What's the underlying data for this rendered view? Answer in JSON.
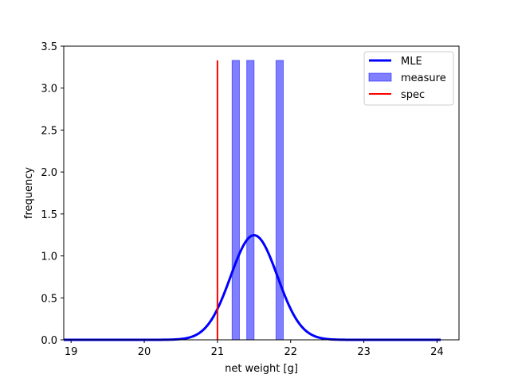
{
  "chart_data": {
    "type": "histogram+line",
    "xlabel": "net weight [g]",
    "ylabel": "frequency",
    "xlim": [
      18.9,
      24.3
    ],
    "ylim": [
      0,
      3.5
    ],
    "xticks": [
      19,
      20,
      21,
      22,
      23,
      24
    ],
    "yticks": [
      0.0,
      0.5,
      1.0,
      1.5,
      2.0,
      2.5,
      3.0,
      3.5
    ],
    "xtick_labels": [
      "19",
      "20",
      "21",
      "22",
      "23",
      "24"
    ],
    "ytick_labels": [
      "0.0",
      "0.5",
      "1.0",
      "1.5",
      "2.0",
      "2.5",
      "3.0",
      "3.5"
    ],
    "grid": false,
    "legend_position": "top-right",
    "legend": [
      "MLE",
      "measure",
      "spec"
    ],
    "series": [
      {
        "name": "MLE",
        "kind": "normal_pdf",
        "mean": 21.5,
        "std": 0.32,
        "x_range": [
          18.9,
          24.05
        ],
        "color": "#0000ff"
      },
      {
        "name": "measure",
        "kind": "histogram_bars",
        "bars": [
          {
            "x0": 21.2,
            "x1": 21.3,
            "height": 3.33
          },
          {
            "x0": 21.4,
            "x1": 21.5,
            "height": 3.33
          },
          {
            "x0": 21.8,
            "x1": 21.9,
            "height": 3.33
          }
        ],
        "color": "#0000ff",
        "alpha": 0.5
      },
      {
        "name": "spec",
        "kind": "vertical_line",
        "x": 21.0,
        "y_range": [
          0,
          3.33
        ],
        "color": "#ff0000"
      }
    ]
  }
}
